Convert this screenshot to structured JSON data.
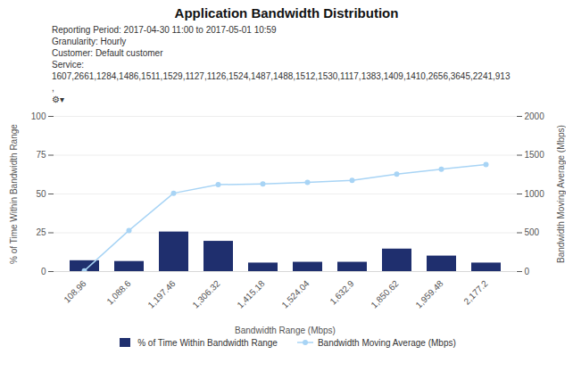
{
  "chart_data": {
    "type": "bar",
    "title": "Application Bandwidth Distribution",
    "annotations": [
      "Reporting Period: 2017-04-30 11:00 to 2017-05-01 10:59",
      "Granularity: Hourly",
      "Customer: Default customer",
      "Service:",
      "1607,2661,1284,1486,1511,1529,1127,1126,1524,1487,1488,1512,1530,1117,1383,1409,1410,2656,3645,2241,913",
      ",",
      "⚙▾"
    ],
    "categories": [
      "108.96",
      "1,088.6",
      "1,197.46",
      "1,306.32",
      "1,415.18",
      "1,524.04",
      "1,632.9",
      "1,850.62",
      "1,959.48",
      "2,177.2"
    ],
    "series": [
      {
        "name": "% of Time Within Bandwidth Range",
        "type": "bar",
        "color": "#1f2f6e",
        "values": [
          7.0,
          6.5,
          25.5,
          19.5,
          5.5,
          6.0,
          6.0,
          14.5,
          10.0,
          5.5
        ]
      },
      {
        "name": "Bandwidth Moving Average (Mbps)",
        "type": "line",
        "axis": "y2",
        "color": "#a8d4f5",
        "marker": "circle",
        "values": [
          10,
          530,
          1010,
          1120,
          1130,
          1150,
          1175,
          1255,
          1320,
          1380
        ]
      }
    ],
    "xlabel": "Bandwidth Range (Mbps)",
    "ylabel": "% of Time Within Bandwidth Range",
    "y2label": "Bandwidth Moving Average (Mbps)",
    "ylim": [
      0,
      100
    ],
    "yticks": [
      0,
      25,
      50,
      75,
      100
    ],
    "y2lim": [
      0,
      2000
    ],
    "y2ticks": [
      0,
      500,
      1000,
      1500,
      2000
    ],
    "grid": true,
    "legend": "bottom"
  }
}
